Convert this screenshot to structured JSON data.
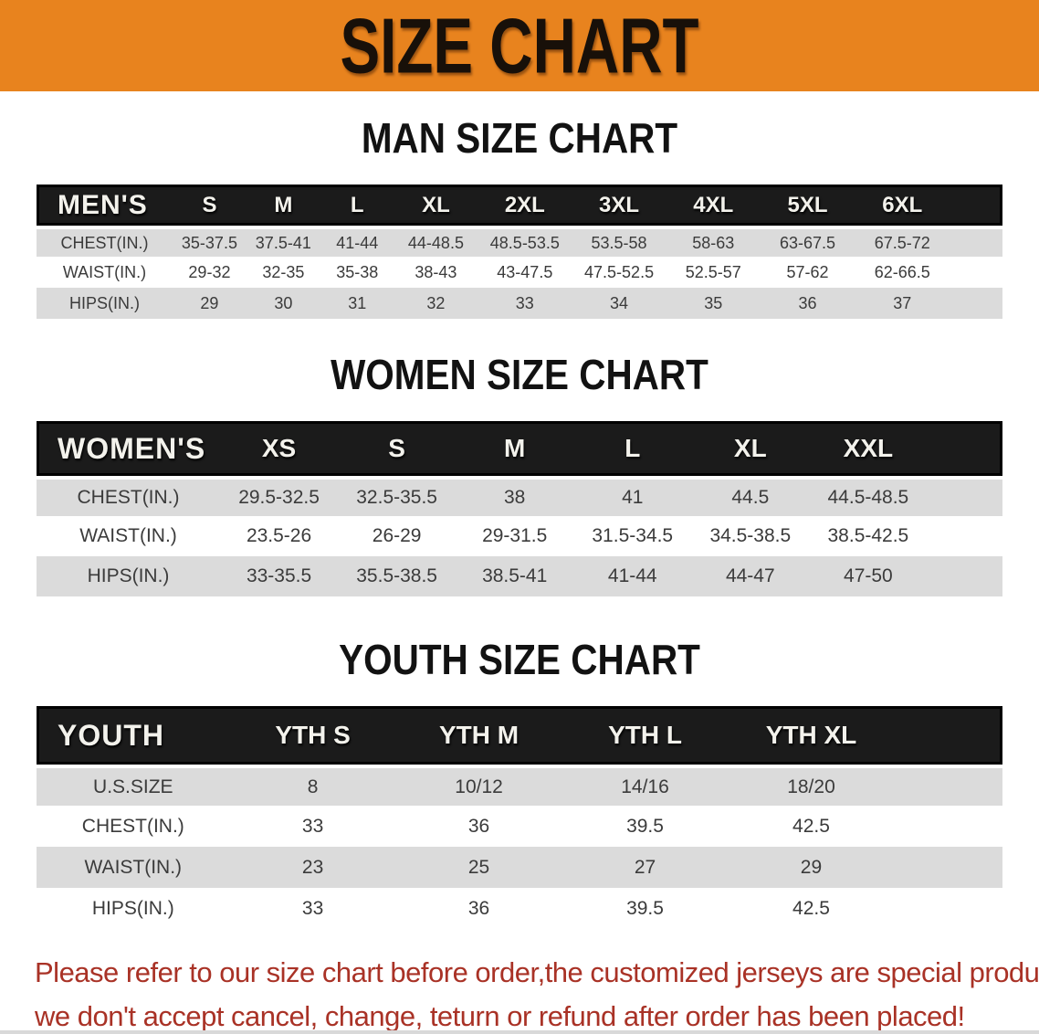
{
  "banner": {
    "title": "SIZE CHART",
    "bg_color": "#E8831E",
    "text_color": "#181009"
  },
  "sections": [
    {
      "id": "men",
      "heading": "MAN SIZE CHART",
      "corner_label": "MEN'S",
      "columns": [
        "S",
        "M",
        "L",
        "XL",
        "2XL",
        "3XL",
        "4XL",
        "5XL",
        "6XL"
      ],
      "rows": [
        {
          "label": "CHEST(IN.)",
          "values": [
            "35-37.5",
            "37.5-41",
            "41-44",
            "44-48.5",
            "48.5-53.5",
            "53.5-58",
            "58-63",
            "63-67.5",
            "67.5-72"
          ]
        },
        {
          "label": "WAIST(IN.)",
          "values": [
            "29-32",
            "32-35",
            "35-38",
            "38-43",
            "43-47.5",
            "47.5-52.5",
            "52.5-57",
            "57-62",
            "62-66.5"
          ]
        },
        {
          "label": "HIPS(IN.)",
          "values": [
            "29",
            "30",
            "31",
            "32",
            "33",
            "34",
            "35",
            "36",
            "37"
          ]
        }
      ]
    },
    {
      "id": "women",
      "heading": "WOMEN SIZE CHART",
      "corner_label": "WOMEN'S",
      "columns": [
        "XS",
        "S",
        "M",
        "L",
        "XL",
        "XXL"
      ],
      "rows": [
        {
          "label": "CHEST(IN.)",
          "values": [
            "29.5-32.5",
            "32.5-35.5",
            "38",
            "41",
            "44.5",
            "44.5-48.5"
          ]
        },
        {
          "label": "WAIST(IN.)",
          "values": [
            "23.5-26",
            "26-29",
            "29-31.5",
            "31.5-34.5",
            "34.5-38.5",
            "38.5-42.5"
          ]
        },
        {
          "label": "HIPS(IN.)",
          "values": [
            "33-35.5",
            "35.5-38.5",
            "38.5-41",
            "41-44",
            "44-47",
            "47-50"
          ]
        }
      ]
    },
    {
      "id": "youth",
      "heading": "YOUTH SIZE CHART",
      "corner_label": "YOUTH",
      "columns": [
        "YTH S",
        "YTH M",
        "YTH L",
        "YTH XL"
      ],
      "rows": [
        {
          "label": "U.S.SIZE",
          "values": [
            "8",
            "10/12",
            "14/16",
            "18/20"
          ]
        },
        {
          "label": "CHEST(IN.)",
          "values": [
            "33",
            "36",
            "39.5",
            "42.5"
          ]
        },
        {
          "label": "WAIST(IN.)",
          "values": [
            "23",
            "25",
            "27",
            "29"
          ]
        },
        {
          "label": "HIPS(IN.)",
          "values": [
            "33",
            "36",
            "39.5",
            "42.5"
          ]
        }
      ]
    }
  ],
  "disclaimer": {
    "line1": "Please refer to our size chart before order,the customized jerseys are special products,",
    "line2": "we don't accept cancel, change, teturn or refund after order has been placed!",
    "color": "#A93226"
  },
  "colors": {
    "header_bar": "#1b1b1b",
    "row_stripe": "#dbdbdb",
    "banner_orange": "#E8831E"
  }
}
